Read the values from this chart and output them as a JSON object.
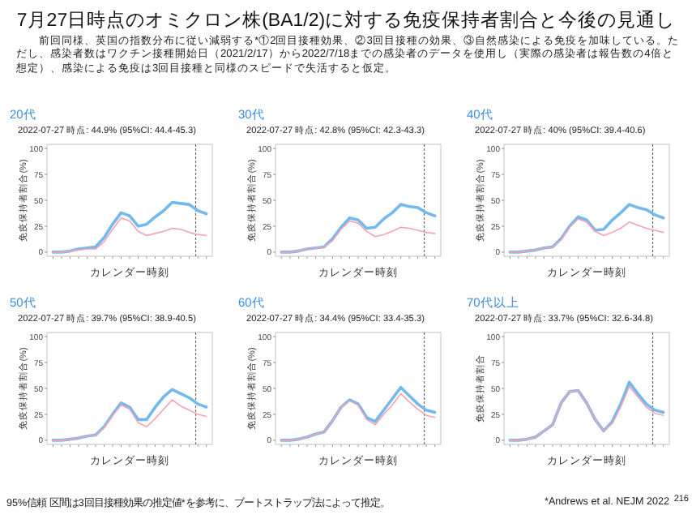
{
  "chart_data": [
    {
      "type": "other",
      "title": "7月27日時点のオミクロン株(BA1/2)に対する免疫保持者割合と今後の見通し",
      "subtitle": "前回同様、英国の指数分布に従い減弱する*①2回目接種効果、②3回目接種の効果、③自然感染による免疫を加味している。ただし、感染者数はワクチン接種開始日（2021/2/17）から2022/7/18までの感染者のデータを使用し（実際の感染者は報告数の4倍と想定）、感染による免疫は3回目接種と同様のスピードで失活すると仮定。",
      "annotations": [
        "95%信頼 区間は3回目接種効果の推定値*を参考に、ブートストラップ法によって推定。",
        "*Andrews et al. NEJM 2022",
        "216"
      ]
    },
    {
      "type": "line",
      "title": "20代",
      "subtitle": "2022-07-27 時点: 44.9% (95%CI: 44.4-45.3)",
      "xlabel": "カレンダー時刻",
      "ylabel": "免疫保持者割合(%)",
      "categories": [
        null,
        null,
        null,
        null,
        null,
        null,
        null,
        null,
        null,
        null,
        null,
        null,
        null,
        null,
        null,
        null,
        null,
        null,
        null
      ],
      "series": [
        {
          "color": "#74b9ee",
          "values": [
            0,
            0,
            1,
            3,
            4,
            5,
            14,
            27,
            38,
            35,
            25,
            27,
            34,
            40,
            48,
            47,
            46,
            40,
            37
          ]
        },
        {
          "color": "#f5a3b3",
          "values": [
            0,
            0,
            1,
            2,
            3,
            3,
            10,
            22,
            33,
            30,
            20,
            16,
            18,
            20,
            23,
            22,
            19,
            17,
            16
          ]
        }
      ],
      "ylim": [
        -4,
        104
      ],
      "yticks": [
        0,
        25,
        50,
        75,
        100
      ]
    },
    {
      "type": "line",
      "title": "30代",
      "subtitle": "2022-07-27 時点: 42.8% (95%CI: 42.3-43.3)",
      "xlabel": "カレンダー時刻",
      "ylabel": "免疫保持者割合(%)",
      "categories": [
        null,
        null,
        null,
        null,
        null,
        null,
        null,
        null,
        null,
        null,
        null,
        null,
        null,
        null,
        null,
        null,
        null,
        null,
        null
      ],
      "series": [
        {
          "color": "#74b9ee",
          "values": [
            0,
            0,
            1,
            3,
            4,
            5,
            13,
            24,
            33,
            31,
            23,
            24,
            32,
            38,
            46,
            44,
            43,
            38,
            35
          ]
        },
        {
          "color": "#f5a3b3",
          "values": [
            0,
            0,
            1,
            3,
            4,
            5,
            11,
            22,
            30,
            28,
            20,
            15,
            17,
            20,
            24,
            23,
            21,
            19,
            18
          ]
        }
      ],
      "ylim": [
        -4,
        104
      ],
      "yticks": [
        0,
        25,
        50,
        75,
        100
      ]
    },
    {
      "type": "line",
      "title": "40代",
      "subtitle": "2022-07-27 時点: 40% (95%CI: 39.4-40.6)",
      "xlabel": "カレンダー時刻",
      "ylabel": "免疫保持者割合(%)",
      "categories": [
        null,
        null,
        null,
        null,
        null,
        null,
        null,
        null,
        null,
        null,
        null,
        null,
        null,
        null,
        null,
        null,
        null,
        null,
        null
      ],
      "series": [
        {
          "color": "#74b9ee",
          "values": [
            0,
            0,
            1,
            2,
            4,
            5,
            13,
            25,
            34,
            31,
            21,
            22,
            31,
            38,
            46,
            43,
            41,
            36,
            33
          ]
        },
        {
          "color": "#f5a3b3",
          "values": [
            0,
            0,
            1,
            2,
            4,
            5,
            12,
            24,
            32,
            29,
            20,
            16,
            19,
            23,
            29,
            26,
            23,
            21,
            19
          ]
        }
      ],
      "ylim": [
        -4,
        104
      ],
      "yticks": [
        0,
        25,
        50,
        75,
        100
      ]
    },
    {
      "type": "line",
      "title": "50代",
      "subtitle": "2022-07-27 時点: 39.7% (95%CI: 38.9-40.5)",
      "xlabel": "カレンダー時刻",
      "ylabel": "免疫保持者割合(%)",
      "categories": [
        null,
        null,
        null,
        null,
        null,
        null,
        null,
        null,
        null,
        null,
        null,
        null,
        null,
        null,
        null,
        null,
        null,
        null,
        null
      ],
      "series": [
        {
          "color": "#74b9ee",
          "values": [
            0,
            0,
            1,
            2,
            4,
            5,
            13,
            25,
            36,
            32,
            20,
            20,
            32,
            42,
            49,
            45,
            41,
            35,
            32
          ]
        },
        {
          "color": "#f5a3b3",
          "values": [
            0,
            0,
            1,
            2,
            4,
            5,
            12,
            24,
            34,
            30,
            17,
            13,
            21,
            30,
            39,
            33,
            29,
            25,
            23
          ]
        }
      ],
      "ylim": [
        -4,
        104
      ],
      "yticks": [
        0,
        25,
        50,
        75,
        100
      ]
    },
    {
      "type": "line",
      "title": "60代",
      "subtitle": "2022-07-27 時点: 34.4% (95%CI: 33.4-35.3)",
      "xlabel": "カレンダー時刻",
      "ylabel": "免疫保持者割合(%)",
      "categories": [
        null,
        null,
        null,
        null,
        null,
        null,
        null,
        null,
        null,
        null,
        null,
        null,
        null,
        null,
        null,
        null,
        null,
        null,
        null
      ],
      "series": [
        {
          "color": "#74b9ee",
          "values": [
            0,
            0,
            1,
            3,
            6,
            8,
            19,
            32,
            39,
            35,
            22,
            18,
            29,
            40,
            51,
            43,
            35,
            29,
            27
          ]
        },
        {
          "color": "#f5a3b3",
          "values": [
            0,
            0,
            1,
            3,
            6,
            8,
            19,
            32,
            38,
            34,
            20,
            15,
            25,
            34,
            45,
            37,
            30,
            24,
            22
          ]
        }
      ],
      "ylim": [
        -4,
        104
      ],
      "yticks": [
        0,
        25,
        50,
        75,
        100
      ]
    },
    {
      "type": "line",
      "title": "70代以上",
      "subtitle": "2022-07-27 時点: 33.7% (95%CI: 32.6-34.8)",
      "xlabel": "カレンダー時刻",
      "ylabel": "免疫保持者割合",
      "categories": [
        null,
        null,
        null,
        null,
        null,
        null,
        null,
        null,
        null,
        null,
        null,
        null,
        null,
        null,
        null,
        null,
        null,
        null,
        null
      ],
      "series": [
        {
          "color": "#74b9ee",
          "values": [
            0,
            0,
            1,
            3,
            9,
            15,
            36,
            47,
            48,
            36,
            20,
            9,
            18,
            35,
            56,
            45,
            35,
            29,
            27
          ]
        },
        {
          "color": "#f5a3b3",
          "values": [
            0,
            0,
            1,
            3,
            9,
            15,
            36,
            47,
            48,
            36,
            20,
            9,
            16,
            32,
            52,
            42,
            32,
            26,
            24
          ]
        }
      ],
      "ylim": [
        -4,
        104
      ],
      "yticks": [
        0,
        25,
        50,
        75,
        100
      ]
    }
  ]
}
